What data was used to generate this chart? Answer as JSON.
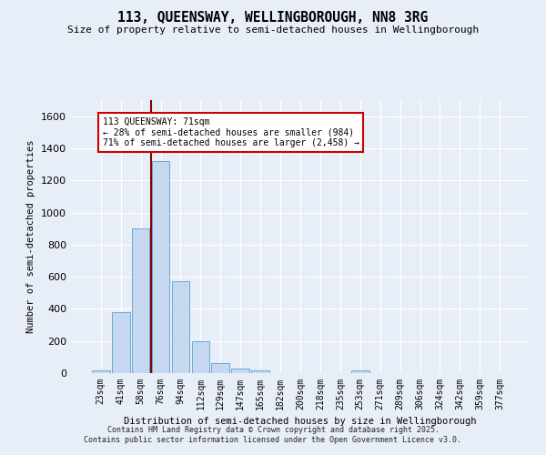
{
  "title": "113, QUEENSWAY, WELLINGBOROUGH, NN8 3RG",
  "subtitle": "Size of property relative to semi-detached houses in Wellingborough",
  "xlabel": "Distribution of semi-detached houses by size in Wellingborough",
  "ylabel": "Number of semi-detached properties",
  "categories": [
    "23sqm",
    "41sqm",
    "58sqm",
    "76sqm",
    "94sqm",
    "112sqm",
    "129sqm",
    "147sqm",
    "165sqm",
    "182sqm",
    "200sqm",
    "218sqm",
    "235sqm",
    "253sqm",
    "271sqm",
    "289sqm",
    "306sqm",
    "324sqm",
    "342sqm",
    "359sqm",
    "377sqm"
  ],
  "values": [
    18,
    380,
    900,
    1320,
    570,
    200,
    65,
    30,
    15,
    0,
    0,
    0,
    0,
    15,
    0,
    0,
    0,
    0,
    0,
    0,
    0
  ],
  "bar_color": "#c5d8f0",
  "bar_edge_color": "#6aaad4",
  "vline_color": "#8b0000",
  "vline_x_index": 2.5,
  "annotation_line0": "113 QUEENSWAY: 71sqm",
  "annotation_line1": "← 28% of semi-detached houses are smaller (984)",
  "annotation_line2": "71% of semi-detached houses are larger (2,458) →",
  "annotation_box_color": "#ffffff",
  "annotation_box_edge": "#cc0000",
  "ylim_max": 1700,
  "yticks": [
    0,
    200,
    400,
    600,
    800,
    1000,
    1200,
    1400,
    1600
  ],
  "background_color": "#e8eef8",
  "grid_color": "#ffffff",
  "footer1": "Contains HM Land Registry data © Crown copyright and database right 2025.",
  "footer2": "Contains public sector information licensed under the Open Government Licence v3.0."
}
